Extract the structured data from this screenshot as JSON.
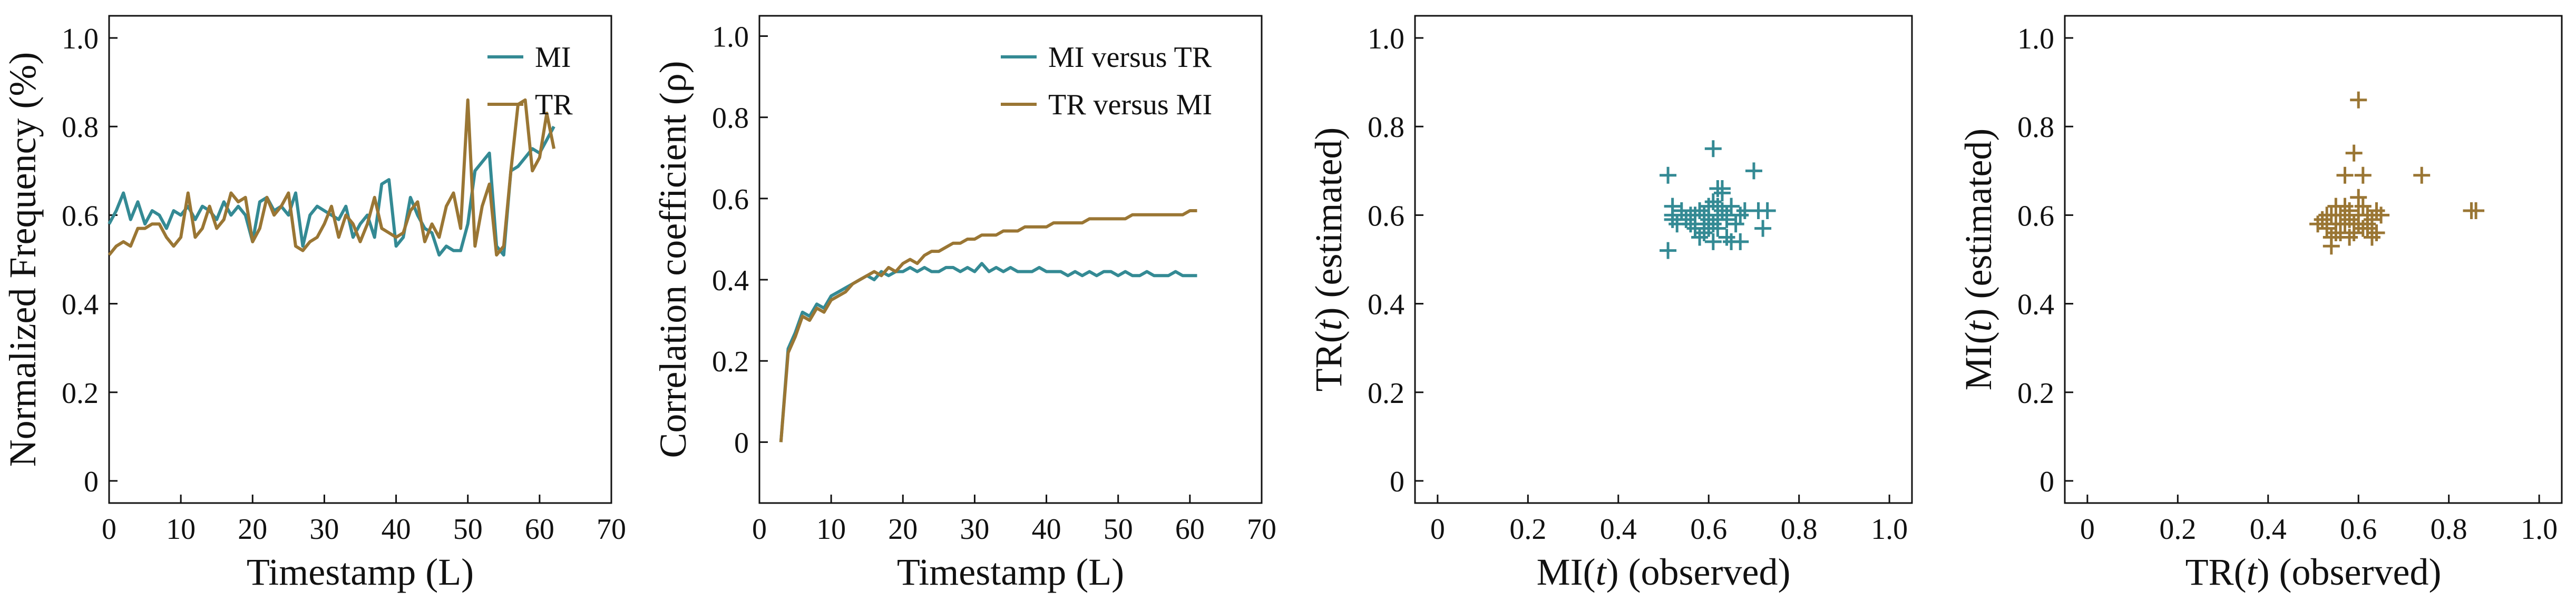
{
  "colors": {
    "mi": "#348a94",
    "tr": "#9a7634",
    "axis": "#111111"
  },
  "chart_data": [
    {
      "type": "line",
      "xlabel": "Timestamp (L)",
      "ylabel": "Normalized Frequency (%)",
      "xlim": [
        0,
        70
      ],
      "ylim": [
        -0.05,
        1.05
      ],
      "xticks": [
        0,
        10,
        20,
        30,
        40,
        50,
        60,
        70
      ],
      "yticks": [
        0,
        0.2,
        0.4,
        0.6,
        0.8,
        1.0
      ],
      "xtick_labels": [
        "0",
        "10",
        "20",
        "30",
        "40",
        "50",
        "60",
        "70"
      ],
      "ytick_labels": [
        "0",
        "0.2",
        "0.4",
        "0.6",
        "0.8",
        "1.0"
      ],
      "legend_position": "top-right",
      "series": [
        {
          "name": "MI",
          "color_key": "mi",
          "x": [
            0,
            1,
            2,
            3,
            4,
            5,
            6,
            7,
            8,
            9,
            10,
            11,
            12,
            13,
            14,
            15,
            16,
            17,
            18,
            19,
            20,
            21,
            22,
            23,
            24,
            25,
            26,
            27,
            28,
            29,
            30,
            31,
            32,
            33,
            34,
            35,
            36,
            37,
            38,
            39,
            40,
            41,
            42,
            43,
            44,
            45,
            46,
            47,
            48,
            49,
            50,
            51,
            52,
            53,
            54,
            55,
            56,
            57,
            58,
            59,
            60,
            61,
            62
          ],
          "y": [
            0.58,
            0.61,
            0.65,
            0.59,
            0.63,
            0.58,
            0.61,
            0.6,
            0.57,
            0.61,
            0.6,
            0.62,
            0.59,
            0.62,
            0.61,
            0.59,
            0.63,
            0.6,
            0.62,
            0.6,
            0.54,
            0.63,
            0.64,
            0.61,
            0.62,
            0.6,
            0.65,
            0.53,
            0.6,
            0.62,
            0.61,
            0.6,
            0.59,
            0.62,
            0.55,
            0.58,
            0.6,
            0.55,
            0.67,
            0.68,
            0.53,
            0.55,
            0.64,
            0.6,
            0.57,
            0.56,
            0.51,
            0.53,
            0.52,
            0.52,
            0.58,
            0.7,
            0.72,
            0.74,
            0.53,
            0.51,
            0.7,
            0.71,
            0.73,
            0.75,
            0.74,
            0.77,
            0.8
          ]
        },
        {
          "name": "TR",
          "color_key": "tr",
          "x": [
            0,
            1,
            2,
            3,
            4,
            5,
            6,
            7,
            8,
            9,
            10,
            11,
            12,
            13,
            14,
            15,
            16,
            17,
            18,
            19,
            20,
            21,
            22,
            23,
            24,
            25,
            26,
            27,
            28,
            29,
            30,
            31,
            32,
            33,
            34,
            35,
            36,
            37,
            38,
            39,
            40,
            41,
            42,
            43,
            44,
            45,
            46,
            47,
            48,
            49,
            50,
            51,
            52,
            53,
            54,
            55,
            56,
            57,
            58,
            59,
            60,
            61,
            62
          ],
          "y": [
            0.51,
            0.53,
            0.54,
            0.53,
            0.57,
            0.57,
            0.58,
            0.58,
            0.55,
            0.53,
            0.55,
            0.65,
            0.55,
            0.57,
            0.62,
            0.57,
            0.59,
            0.65,
            0.63,
            0.64,
            0.54,
            0.57,
            0.64,
            0.6,
            0.62,
            0.65,
            0.53,
            0.52,
            0.54,
            0.55,
            0.58,
            0.62,
            0.55,
            0.6,
            0.58,
            0.54,
            0.58,
            0.64,
            0.57,
            0.56,
            0.55,
            0.56,
            0.61,
            0.63,
            0.54,
            0.58,
            0.55,
            0.62,
            0.65,
            0.57,
            0.86,
            0.53,
            0.62,
            0.67,
            0.51,
            0.53,
            0.7,
            0.85,
            0.86,
            0.7,
            0.73,
            0.83,
            0.75
          ]
        }
      ]
    },
    {
      "type": "line",
      "xlabel": "Timestamp (L)",
      "ylabel": "Correlation coefficient (ρ)",
      "xlim": [
        0,
        70
      ],
      "ylim": [
        -0.15,
        1.05
      ],
      "xticks": [
        0,
        10,
        20,
        30,
        40,
        50,
        60,
        70
      ],
      "yticks": [
        0,
        0.2,
        0.4,
        0.6,
        0.8,
        1.0
      ],
      "xtick_labels": [
        "0",
        "10",
        "20",
        "30",
        "40",
        "50",
        "60",
        "70"
      ],
      "ytick_labels": [
        "0",
        "0.2",
        "0.4",
        "0.6",
        "0.8",
        "1.0"
      ],
      "legend_position": "top-right",
      "series": [
        {
          "name": "MI versus TR",
          "color_key": "mi",
          "x": [
            3,
            4,
            5,
            6,
            7,
            8,
            9,
            10,
            11,
            12,
            13,
            14,
            15,
            16,
            17,
            18,
            19,
            20,
            21,
            22,
            23,
            24,
            25,
            26,
            27,
            28,
            29,
            30,
            31,
            32,
            33,
            34,
            35,
            36,
            37,
            38,
            39,
            40,
            41,
            42,
            43,
            44,
            45,
            46,
            47,
            48,
            49,
            50,
            51,
            52,
            53,
            54,
            55,
            56,
            57,
            58,
            59,
            60,
            61
          ],
          "y": [
            0.0,
            0.23,
            0.27,
            0.32,
            0.31,
            0.34,
            0.33,
            0.36,
            0.37,
            0.38,
            0.39,
            0.4,
            0.41,
            0.4,
            0.42,
            0.41,
            0.42,
            0.42,
            0.43,
            0.42,
            0.43,
            0.42,
            0.42,
            0.43,
            0.43,
            0.42,
            0.43,
            0.42,
            0.44,
            0.42,
            0.43,
            0.42,
            0.43,
            0.42,
            0.42,
            0.42,
            0.43,
            0.42,
            0.42,
            0.42,
            0.41,
            0.42,
            0.41,
            0.42,
            0.41,
            0.42,
            0.42,
            0.41,
            0.42,
            0.41,
            0.41,
            0.42,
            0.41,
            0.41,
            0.41,
            0.42,
            0.41,
            0.41,
            0.41
          ]
        },
        {
          "name": "TR versus MI",
          "color_key": "tr",
          "x": [
            3,
            4,
            5,
            6,
            7,
            8,
            9,
            10,
            11,
            12,
            13,
            14,
            15,
            16,
            17,
            18,
            19,
            20,
            21,
            22,
            23,
            24,
            25,
            26,
            27,
            28,
            29,
            30,
            31,
            32,
            33,
            34,
            35,
            36,
            37,
            38,
            39,
            40,
            41,
            42,
            43,
            44,
            45,
            46,
            47,
            48,
            49,
            50,
            51,
            52,
            53,
            54,
            55,
            56,
            57,
            58,
            59,
            60,
            61
          ],
          "y": [
            0.0,
            0.22,
            0.26,
            0.31,
            0.3,
            0.33,
            0.32,
            0.35,
            0.36,
            0.37,
            0.39,
            0.4,
            0.41,
            0.42,
            0.41,
            0.43,
            0.42,
            0.44,
            0.45,
            0.44,
            0.46,
            0.47,
            0.47,
            0.48,
            0.49,
            0.49,
            0.5,
            0.5,
            0.51,
            0.51,
            0.51,
            0.52,
            0.52,
            0.52,
            0.53,
            0.53,
            0.53,
            0.53,
            0.54,
            0.54,
            0.54,
            0.54,
            0.54,
            0.55,
            0.55,
            0.55,
            0.55,
            0.55,
            0.55,
            0.56,
            0.56,
            0.56,
            0.56,
            0.56,
            0.56,
            0.56,
            0.56,
            0.57,
            0.57
          ]
        }
      ]
    },
    {
      "type": "scatter",
      "marker": "+",
      "xlabel": "MI(t) (observed)",
      "xlabel_parts": [
        "MI(",
        "t",
        ") (observed)"
      ],
      "ylabel": "TR(t) (estimated)",
      "ylabel_parts": [
        "TR(",
        "t",
        ") (estimated)"
      ],
      "xlim": [
        -0.05,
        1.05
      ],
      "ylim": [
        -0.05,
        1.05
      ],
      "xticks": [
        0,
        0.2,
        0.4,
        0.6,
        0.8,
        1.0
      ],
      "yticks": [
        0,
        0.2,
        0.4,
        0.6,
        0.8,
        1.0
      ],
      "xtick_labels": [
        "0",
        "0.2",
        "0.4",
        "0.6",
        "0.8",
        "1.0"
      ],
      "ytick_labels": [
        "0",
        "0.2",
        "0.4",
        "0.6",
        "0.8",
        "1.0"
      ],
      "series": [
        {
          "color_key": "mi",
          "points": [
            [
              0.51,
              0.69
            ],
            [
              0.52,
              0.62
            ],
            [
              0.51,
              0.52
            ],
            [
              0.52,
              0.6
            ],
            [
              0.53,
              0.58
            ],
            [
              0.54,
              0.61
            ],
            [
              0.55,
              0.59
            ],
            [
              0.56,
              0.6
            ],
            [
              0.57,
              0.57
            ],
            [
              0.58,
              0.55
            ],
            [
              0.59,
              0.56
            ],
            [
              0.59,
              0.6
            ],
            [
              0.6,
              0.58
            ],
            [
              0.6,
              0.62
            ],
            [
              0.61,
              0.63
            ],
            [
              0.61,
              0.58
            ],
            [
              0.62,
              0.6
            ],
            [
              0.62,
              0.57
            ],
            [
              0.63,
              0.61
            ],
            [
              0.63,
              0.65
            ],
            [
              0.64,
              0.6
            ],
            [
              0.64,
              0.55
            ],
            [
              0.65,
              0.62
            ],
            [
              0.66,
              0.58
            ],
            [
              0.67,
              0.6
            ],
            [
              0.68,
              0.61
            ],
            [
              0.7,
              0.7
            ],
            [
              0.71,
              0.61
            ],
            [
              0.72,
              0.57
            ],
            [
              0.73,
              0.61
            ],
            [
              0.61,
              0.75
            ],
            [
              0.62,
              0.66
            ],
            [
              0.63,
              0.66
            ],
            [
              0.65,
              0.54
            ],
            [
              0.67,
              0.54
            ],
            [
              0.6,
              0.57
            ],
            [
              0.58,
              0.61
            ],
            [
              0.57,
              0.6
            ],
            [
              0.62,
              0.62
            ],
            [
              0.64,
              0.59
            ],
            [
              0.61,
              0.54
            ],
            [
              0.6,
              0.59
            ],
            [
              0.59,
              0.58
            ],
            [
              0.56,
              0.58
            ],
            [
              0.52,
              0.59
            ]
          ]
        }
      ]
    },
    {
      "type": "scatter",
      "marker": "+",
      "xlabel": "TR(t) (observed)",
      "xlabel_parts": [
        "TR(",
        "t",
        ") (observed)"
      ],
      "ylabel": "MI(t) (estimated)",
      "ylabel_parts": [
        "MI(",
        "t",
        ") (estimated)"
      ],
      "xlim": [
        -0.05,
        1.05
      ],
      "ylim": [
        -0.05,
        1.05
      ],
      "xticks": [
        0,
        0.2,
        0.4,
        0.6,
        0.8,
        1.0
      ],
      "yticks": [
        0,
        0.2,
        0.4,
        0.6,
        0.8,
        1.0
      ],
      "xtick_labels": [
        "0",
        "0.2",
        "0.4",
        "0.6",
        "0.8",
        "1.0"
      ],
      "ytick_labels": [
        "0",
        "0.2",
        "0.4",
        "0.6",
        "0.8",
        "1.0"
      ],
      "series": [
        {
          "color_key": "tr",
          "points": [
            [
              0.51,
              0.58
            ],
            [
              0.52,
              0.59
            ],
            [
              0.53,
              0.57
            ],
            [
              0.54,
              0.6
            ],
            [
              0.54,
              0.53
            ],
            [
              0.55,
              0.58
            ],
            [
              0.55,
              0.62
            ],
            [
              0.56,
              0.56
            ],
            [
              0.56,
              0.6
            ],
            [
              0.57,
              0.58
            ],
            [
              0.57,
              0.69
            ],
            [
              0.58,
              0.59
            ],
            [
              0.58,
              0.61
            ],
            [
              0.59,
              0.58
            ],
            [
              0.59,
              0.74
            ],
            [
              0.6,
              0.6
            ],
            [
              0.6,
              0.86
            ],
            [
              0.61,
              0.57
            ],
            [
              0.61,
              0.69
            ],
            [
              0.62,
              0.6
            ],
            [
              0.62,
              0.57
            ],
            [
              0.63,
              0.59
            ],
            [
              0.63,
              0.55
            ],
            [
              0.64,
              0.61
            ],
            [
              0.64,
              0.56
            ],
            [
              0.65,
              0.6
            ],
            [
              0.74,
              0.69
            ],
            [
              0.85,
              0.61
            ],
            [
              0.86,
              0.61
            ],
            [
              0.6,
              0.64
            ],
            [
              0.55,
              0.56
            ],
            [
              0.59,
              0.56
            ],
            [
              0.53,
              0.6
            ],
            [
              0.57,
              0.62
            ],
            [
              0.61,
              0.62
            ],
            [
              0.58,
              0.55
            ],
            [
              0.56,
              0.58
            ],
            [
              0.62,
              0.58
            ],
            [
              0.54,
              0.55
            ],
            [
              0.6,
              0.58
            ]
          ]
        }
      ]
    }
  ]
}
